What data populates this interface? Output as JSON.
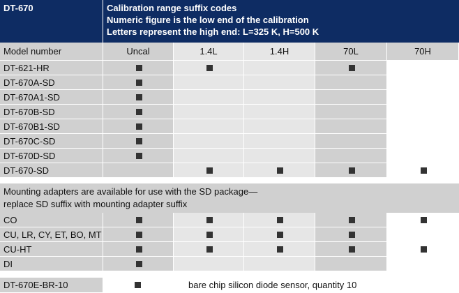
{
  "header": {
    "model_code": "DT-670",
    "lines": [
      "Calibration range suffix codes",
      "Numeric figure is the low end of the calibration",
      "Letters represent the high end: L=325 K, H=500 K"
    ]
  },
  "columns": {
    "model": "Model number",
    "uncal": "Uncal",
    "c14l": "1.4L",
    "c14h": "1.4H",
    "c70l": "70L",
    "c70h": "70H"
  },
  "rows_top": [
    {
      "model": "DT-621-HR",
      "marks": [
        true,
        true,
        false,
        true,
        false
      ]
    },
    {
      "model": "DT-670A-SD",
      "marks": [
        true,
        false,
        false,
        false,
        false
      ]
    },
    {
      "model": "DT-670A1-SD",
      "marks": [
        true,
        false,
        false,
        false,
        false
      ]
    },
    {
      "model": "DT-670B-SD",
      "marks": [
        true,
        false,
        false,
        false,
        false
      ]
    },
    {
      "model": "DT-670B1-SD",
      "marks": [
        true,
        false,
        false,
        false,
        false
      ]
    },
    {
      "model": "DT-670C-SD",
      "marks": [
        true,
        false,
        false,
        false,
        false
      ]
    },
    {
      "model": "DT-670D-SD",
      "marks": [
        true,
        false,
        false,
        false,
        false
      ]
    },
    {
      "model": "DT-670-SD",
      "marks": [
        false,
        true,
        true,
        true,
        true
      ]
    }
  ],
  "note": {
    "line1": "Mounting adapters are available for use with the SD package—",
    "line2": "replace SD suffix with mounting adapter suffix"
  },
  "rows_bottom": [
    {
      "model": "CO",
      "marks": [
        true,
        true,
        true,
        true,
        true
      ]
    },
    {
      "model": "CU, LR, CY, ET, BO, MT",
      "marks": [
        true,
        true,
        true,
        true,
        false
      ]
    },
    {
      "model": "CU-HT",
      "marks": [
        true,
        true,
        true,
        true,
        true
      ]
    },
    {
      "model": "DI",
      "marks": [
        true,
        false,
        false,
        false,
        false
      ]
    }
  ],
  "last_row": {
    "model": "DT-670E-BR-10",
    "mark": true,
    "description": "bare chip silicon diode sensor, quantity 10"
  },
  "colors": {
    "header_bg": "#0e2c63",
    "cell_dark": "#d0d0d0",
    "cell_light": "#e6e6e6",
    "cell_white": "#ffffff",
    "mark": "#333333"
  }
}
